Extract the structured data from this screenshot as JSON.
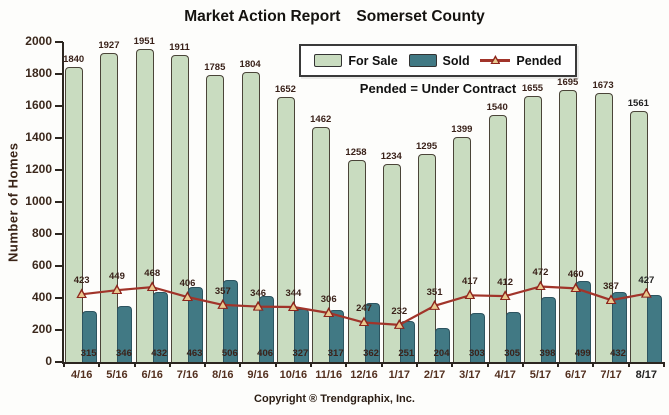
{
  "title": {
    "left": "Market Action Report",
    "right": "Somerset County"
  },
  "legend": {
    "items": [
      {
        "label": "For Sale",
        "swatch": "green-box"
      },
      {
        "label": "Sold",
        "swatch": "teal-box"
      },
      {
        "label": "Pended",
        "swatch": "red-line-marker"
      }
    ]
  },
  "note": "Pended = Under Contract",
  "footer": "Copyright ® Trendgraphix, Inc.",
  "colors": {
    "for_sale_fill": "#c9dcc0",
    "for_sale_border": "#4a4438",
    "sold_fill": "#417984",
    "sold_border": "#2c5460",
    "pended_line": "#a1342a",
    "pended_marker_fill": "#e9c98f",
    "label_text": "#3a221a",
    "axis": "#2c2620"
  },
  "chart_data": {
    "type": "bar",
    "title": "Market Action Report Somerset County",
    "xlabel": "",
    "ylabel": "Number of Homes",
    "ylim": [
      0,
      2000
    ],
    "ytick_step": 200,
    "grid": false,
    "legend_position": "top-center",
    "categories": [
      "4/16",
      "5/16",
      "6/16",
      "7/16",
      "8/16",
      "9/16",
      "10/16",
      "11/16",
      "12/16",
      "1/17",
      "2/17",
      "3/17",
      "4/17",
      "5/17",
      "6/17",
      "7/17",
      "8/17"
    ],
    "series": [
      {
        "name": "For Sale",
        "type": "bar",
        "color": "#c9dcc0",
        "values": [
          1840,
          1927,
          1951,
          1911,
          1785,
          1804,
          1652,
          1462,
          1258,
          1234,
          1295,
          1399,
          1540,
          1655,
          1695,
          1673,
          1561
        ]
      },
      {
        "name": "Sold",
        "type": "bar",
        "color": "#417984",
        "values": [
          315,
          346,
          432,
          463,
          506,
          406,
          327,
          317,
          362,
          251,
          204,
          303,
          305,
          398,
          499,
          432,
          410
        ],
        "labels": [
          "315",
          "346",
          "432",
          "463",
          "506",
          "406",
          "327",
          "317",
          "362",
          "251",
          "204",
          "303",
          "305",
          "398",
          "499",
          "432",
          ""
        ]
      },
      {
        "name": "Pended",
        "type": "line",
        "color": "#a1342a",
        "values": [
          423,
          449,
          468,
          406,
          357,
          346,
          344,
          306,
          247,
          232,
          351,
          417,
          412,
          472,
          460,
          387,
          427
        ]
      }
    ]
  }
}
